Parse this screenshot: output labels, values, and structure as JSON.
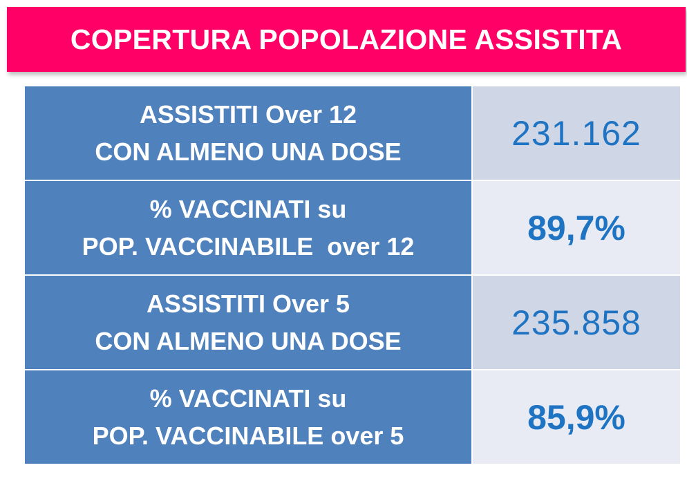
{
  "header": {
    "title": "COPERTURA POPOLAZIONE ASSISTITA"
  },
  "rows": [
    {
      "label_line1": "ASSISTITI Over 12",
      "label_line2": "CON ALMENO UNA DOSE",
      "value": "231.162"
    },
    {
      "label_line1": "% VACCINATI su",
      "label_line2": "POP. VACCINABILE  over 12",
      "value": "89,7%"
    },
    {
      "label_line1": "ASSISTITI Over 5",
      "label_line2": "CON ALMENO UNA DOSE",
      "value": "235.858"
    },
    {
      "label_line1": "% VACCINATI su",
      "label_line2": "POP. VACCINABILE over 5",
      "value": "85,9%"
    }
  ],
  "colors": {
    "banner": "#ff0066",
    "label_bg": "#4f81bd",
    "value_text": "#1e74c2",
    "value_bg_dark": "#cfd6e6",
    "value_bg_light": "#e8ebf3"
  }
}
